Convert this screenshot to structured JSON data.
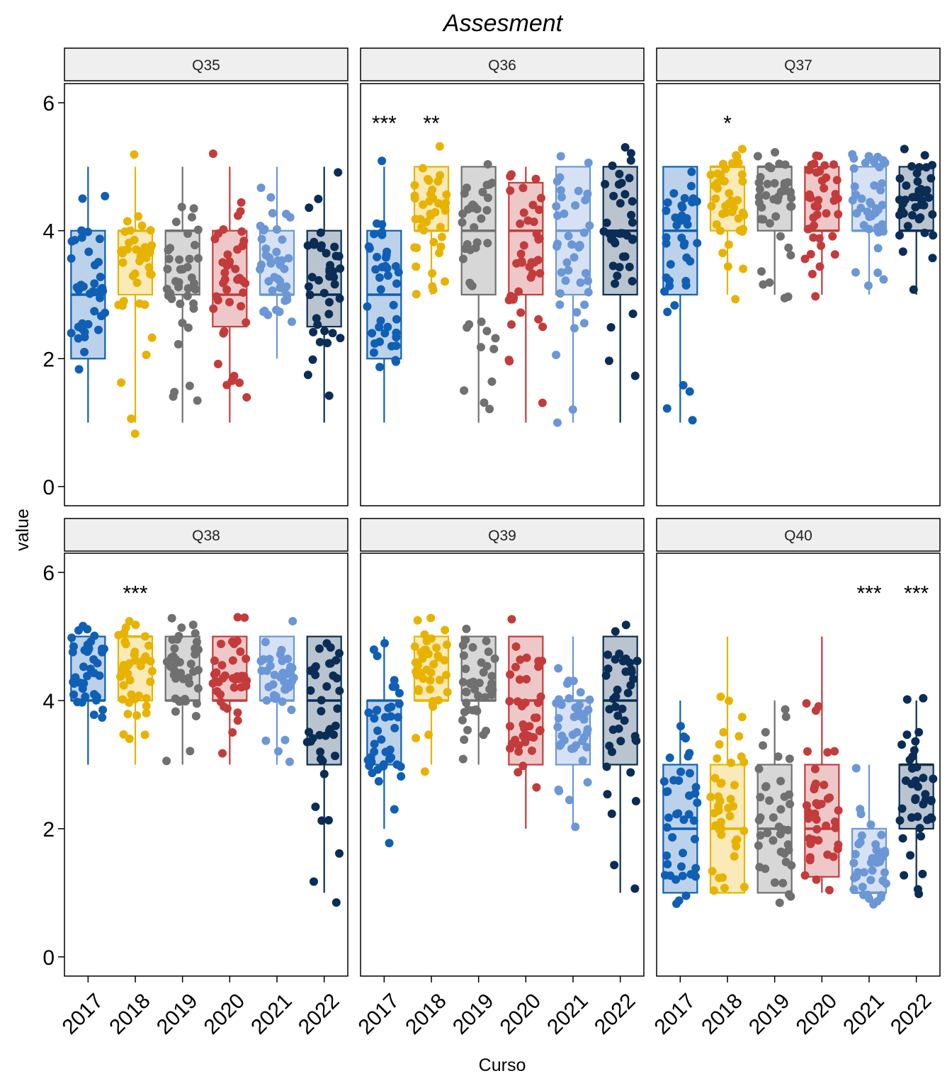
{
  "chart_data": {
    "type": "box",
    "title": "Assesment",
    "xlabel": "Curso",
    "ylabel": "value",
    "ylim": [
      -0.3,
      6.3
    ],
    "yticks": [
      "0",
      "2",
      "4",
      "6"
    ],
    "categories": [
      "2017",
      "2018",
      "2019",
      "2020",
      "2021",
      "2022"
    ],
    "colors": {
      "2017": "#0f5fb5",
      "2018": "#e8b300",
      "2019": "#707070",
      "2020": "#c43b3b",
      "2021": "#6b97d6",
      "2022": "#0a2d55"
    },
    "grid": false,
    "layout": "2 rows x 3 columns facets",
    "panels": [
      {
        "name": "Q35",
        "boxes": [
          {
            "q1": 2,
            "median": 3,
            "q3": 4,
            "whisker_low": 1,
            "whisker_high": 5
          },
          {
            "q1": 3,
            "median": 4,
            "q3": 4,
            "whisker_low": 1,
            "whisker_high": 5
          },
          {
            "q1": 3,
            "median": 4,
            "q3": 4,
            "whisker_low": 1,
            "whisker_high": 5
          },
          {
            "q1": 2.5,
            "median": 3,
            "q3": 4,
            "whisker_low": 1,
            "whisker_high": 5
          },
          {
            "q1": 3,
            "median": 3,
            "q3": 4,
            "whisker_low": 2,
            "whisker_high": 5
          },
          {
            "q1": 2.5,
            "median": 3,
            "q3": 4,
            "whisker_low": 1,
            "whisker_high": 5
          }
        ],
        "significance": [
          "",
          "",
          "",
          "",
          "",
          ""
        ]
      },
      {
        "name": "Q36",
        "boxes": [
          {
            "q1": 2,
            "median": 3,
            "q3": 4,
            "whisker_low": 1,
            "whisker_high": 5
          },
          {
            "q1": 4,
            "median": 4,
            "q3": 5,
            "whisker_low": 3,
            "whisker_high": 5
          },
          {
            "q1": 3,
            "median": 4,
            "q3": 5,
            "whisker_low": 1,
            "whisker_high": 5
          },
          {
            "q1": 3,
            "median": 4,
            "q3": 4.75,
            "whisker_low": 1,
            "whisker_high": 5
          },
          {
            "q1": 3,
            "median": 4,
            "q3": 5,
            "whisker_low": 1,
            "whisker_high": 5
          },
          {
            "q1": 3,
            "median": 4,
            "q3": 5,
            "whisker_low": 1,
            "whisker_high": 5
          }
        ],
        "significance": [
          "***",
          "**",
          "",
          "",
          "",
          ""
        ]
      },
      {
        "name": "Q37",
        "boxes": [
          {
            "q1": 3,
            "median": 4,
            "q3": 5,
            "whisker_low": 1,
            "whisker_high": 5
          },
          {
            "q1": 4,
            "median": 5,
            "q3": 5,
            "whisker_low": 3,
            "whisker_high": 5
          },
          {
            "q1": 4,
            "median": 5,
            "q3": 5,
            "whisker_low": 3,
            "whisker_high": 5
          },
          {
            "q1": 4,
            "median": 4,
            "q3": 5,
            "whisker_low": 3,
            "whisker_high": 5
          },
          {
            "q1": 4,
            "median": 4,
            "q3": 5,
            "whisker_low": 3,
            "whisker_high": 5
          },
          {
            "q1": 4,
            "median": 4,
            "q3": 5,
            "whisker_low": 3,
            "whisker_high": 5
          }
        ],
        "significance": [
          "",
          "*",
          "",
          "",
          "",
          ""
        ]
      },
      {
        "name": "Q38",
        "boxes": [
          {
            "q1": 4,
            "median": 4,
            "q3": 5,
            "whisker_low": 3,
            "whisker_high": 5
          },
          {
            "q1": 4,
            "median": 5,
            "q3": 5,
            "whisker_low": 3,
            "whisker_high": 5
          },
          {
            "q1": 4,
            "median": 4,
            "q3": 5,
            "whisker_low": 3,
            "whisker_high": 5
          },
          {
            "q1": 4,
            "median": 4,
            "q3": 5,
            "whisker_low": 3,
            "whisker_high": 5
          },
          {
            "q1": 4,
            "median": 4,
            "q3": 5,
            "whisker_low": 3,
            "whisker_high": 5
          },
          {
            "q1": 3,
            "median": 4,
            "q3": 5,
            "whisker_low": 1,
            "whisker_high": 5
          }
        ],
        "significance": [
          "",
          "***",
          "",
          "",
          "",
          ""
        ]
      },
      {
        "name": "Q39",
        "boxes": [
          {
            "q1": 3,
            "median": 4,
            "q3": 4,
            "whisker_low": 2,
            "whisker_high": 5
          },
          {
            "q1": 4,
            "median": 4,
            "q3": 5,
            "whisker_low": 3,
            "whisker_high": 5
          },
          {
            "q1": 4,
            "median": 4,
            "q3": 5,
            "whisker_low": 3,
            "whisker_high": 5
          },
          {
            "q1": 3,
            "median": 4,
            "q3": 5,
            "whisker_low": 2,
            "whisker_high": 5
          },
          {
            "q1": 3,
            "median": 4,
            "q3": 4,
            "whisker_low": 2,
            "whisker_high": 5
          },
          {
            "q1": 3,
            "median": 4,
            "q3": 5,
            "whisker_low": 1,
            "whisker_high": 5
          }
        ],
        "significance": [
          "",
          "",
          "",
          "",
          "",
          ""
        ]
      },
      {
        "name": "Q40",
        "boxes": [
          {
            "q1": 1,
            "median": 2,
            "q3": 3,
            "whisker_low": 1,
            "whisker_high": 4
          },
          {
            "q1": 1,
            "median": 2,
            "q3": 3,
            "whisker_low": 1,
            "whisker_high": 5
          },
          {
            "q1": 1,
            "median": 2,
            "q3": 3,
            "whisker_low": 1,
            "whisker_high": 4
          },
          {
            "q1": 1.25,
            "median": 2,
            "q3": 3,
            "whisker_low": 1,
            "whisker_high": 5
          },
          {
            "q1": 1,
            "median": 1,
            "q3": 2,
            "whisker_low": 1,
            "whisker_high": 3
          },
          {
            "q1": 2,
            "median": 3,
            "q3": 3,
            "whisker_low": 1,
            "whisker_high": 4
          }
        ],
        "significance": [
          "",
          "",
          "",
          "",
          "***",
          "***"
        ]
      }
    ]
  }
}
